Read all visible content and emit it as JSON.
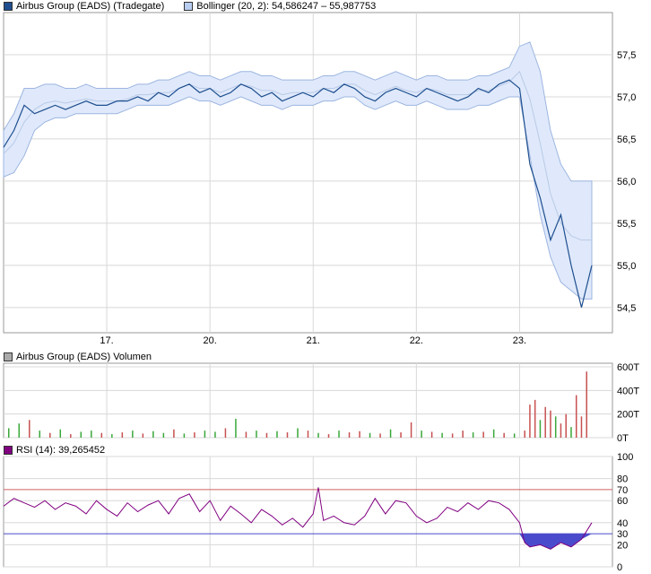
{
  "colors": {
    "price": "#1f4f8f",
    "band_fill": "#dfe9fb",
    "band_edge": "#9db5e0",
    "grid": "#d8d8d8",
    "frame": "#9a9a9a",
    "vol_up": "#3aa83a",
    "vol_down": "#c85050",
    "rsi_line": "#800080",
    "rsi_70": "#d06060",
    "rsi_30": "#4a4acc",
    "rsi_fill": "#4a4acc"
  },
  "price_panel": {
    "legend_price": "Airbus Group (EADS) (Tradegate)",
    "legend_bollinger": "Bollinger (20, 2): 54,586247 – 55,987753"
  },
  "volume_panel": {
    "legend": "Airbus Group (EADS) Volumen"
  },
  "rsi_panel": {
    "legend": "RSI (14): 39,265452"
  },
  "chart_data": [
    {
      "type": "line",
      "name": "price",
      "y_ticks": [
        "57,5",
        "57,0",
        "56,5",
        "56,0",
        "55,5",
        "55,0",
        "54,5"
      ],
      "y_tick_values": [
        57.5,
        57.0,
        56.5,
        56.0,
        55.5,
        55.0,
        54.5
      ],
      "ylim": [
        54.2,
        58.0
      ],
      "x_ticks": [
        "17.",
        "20.",
        "21.",
        "22.",
        "23."
      ],
      "x_tick_positions": [
        1,
        2,
        3,
        4,
        5
      ],
      "xlim": [
        0,
        5.9
      ],
      "x": [
        0,
        0.1,
        0.2,
        0.3,
        0.4,
        0.5,
        0.6,
        0.7,
        0.8,
        0.9,
        1.0,
        1.1,
        1.2,
        1.3,
        1.4,
        1.5,
        1.6,
        1.7,
        1.8,
        1.9,
        2.0,
        2.1,
        2.2,
        2.3,
        2.4,
        2.5,
        2.6,
        2.7,
        2.8,
        2.9,
        3.0,
        3.1,
        3.2,
        3.3,
        3.4,
        3.5,
        3.6,
        3.7,
        3.8,
        3.9,
        4.0,
        4.1,
        4.2,
        4.3,
        4.4,
        4.5,
        4.6,
        4.7,
        4.8,
        4.9,
        5.0,
        5.1,
        5.2,
        5.3,
        5.4,
        5.5,
        5.6,
        5.7
      ],
      "values": [
        56.4,
        56.6,
        56.9,
        56.8,
        56.85,
        56.9,
        56.85,
        56.9,
        56.95,
        56.9,
        56.9,
        56.95,
        56.95,
        57.0,
        56.95,
        57.05,
        57.0,
        57.1,
        57.15,
        57.05,
        57.1,
        57.0,
        57.05,
        57.15,
        57.1,
        57.0,
        57.05,
        56.95,
        57.0,
        57.05,
        57.0,
        57.1,
        57.05,
        57.15,
        57.1,
        57.0,
        56.95,
        57.05,
        57.1,
        57.05,
        57.0,
        57.1,
        57.05,
        57.0,
        56.95,
        57.0,
        57.1,
        57.05,
        57.15,
        57.2,
        57.1,
        56.2,
        55.8,
        55.3,
        55.6,
        55.0,
        54.5,
        55.0
      ],
      "band_upper": [
        56.6,
        56.8,
        57.1,
        57.1,
        57.15,
        57.15,
        57.1,
        57.1,
        57.15,
        57.1,
        57.1,
        57.1,
        57.1,
        57.15,
        57.15,
        57.2,
        57.2,
        57.25,
        57.3,
        57.25,
        57.25,
        57.2,
        57.25,
        57.3,
        57.3,
        57.25,
        57.25,
        57.2,
        57.2,
        57.2,
        57.2,
        57.25,
        57.25,
        57.3,
        57.3,
        57.25,
        57.2,
        57.25,
        57.3,
        57.25,
        57.2,
        57.25,
        57.25,
        57.2,
        57.2,
        57.2,
        57.25,
        57.25,
        57.3,
        57.35,
        57.6,
        57.65,
        57.3,
        56.6,
        56.2,
        56.0,
        56.0,
        56.0
      ],
      "band_lower": [
        56.05,
        56.1,
        56.3,
        56.6,
        56.7,
        56.75,
        56.75,
        56.8,
        56.8,
        56.8,
        56.8,
        56.8,
        56.85,
        56.9,
        56.9,
        56.9,
        56.9,
        56.95,
        57.0,
        56.95,
        56.95,
        56.9,
        56.95,
        57.0,
        56.95,
        56.9,
        56.9,
        56.85,
        56.9,
        56.9,
        56.9,
        56.95,
        56.95,
        57.0,
        57.0,
        56.9,
        56.85,
        56.9,
        56.95,
        56.9,
        56.9,
        56.95,
        56.9,
        56.85,
        56.85,
        56.85,
        56.9,
        56.9,
        56.95,
        57.0,
        57.0,
        56.3,
        55.6,
        55.1,
        54.8,
        54.7,
        54.6,
        54.6
      ]
    },
    {
      "type": "bar",
      "name": "volume",
      "y_ticks": [
        "600T",
        "400T",
        "200T",
        "0T"
      ],
      "y_tick_values": [
        600,
        400,
        200,
        0
      ],
      "ylim": [
        0,
        600
      ],
      "x": [
        0.05,
        0.15,
        0.25,
        0.35,
        0.45,
        0.55,
        0.65,
        0.75,
        0.85,
        0.95,
        1.05,
        1.15,
        1.25,
        1.35,
        1.45,
        1.55,
        1.65,
        1.75,
        1.85,
        1.95,
        2.05,
        2.15,
        2.25,
        2.35,
        2.45,
        2.55,
        2.65,
        2.75,
        2.85,
        2.95,
        3.05,
        3.15,
        3.25,
        3.35,
        3.45,
        3.55,
        3.65,
        3.75,
        3.85,
        3.95,
        4.05,
        4.15,
        4.25,
        4.35,
        4.45,
        4.55,
        4.65,
        4.75,
        4.85,
        4.95,
        5.05,
        5.1,
        5.15,
        5.2,
        5.25,
        5.3,
        5.35,
        5.4,
        5.45,
        5.5,
        5.55,
        5.6,
        5.65
      ],
      "values": [
        80,
        120,
        150,
        60,
        40,
        70,
        30,
        50,
        60,
        40,
        30,
        45,
        60,
        35,
        55,
        40,
        70,
        35,
        45,
        60,
        50,
        80,
        160,
        50,
        60,
        40,
        55,
        45,
        80,
        60,
        40,
        30,
        60,
        45,
        55,
        40,
        35,
        70,
        45,
        130,
        60,
        50,
        40,
        35,
        60,
        45,
        50,
        70,
        40,
        35,
        60,
        280,
        320,
        150,
        260,
        230,
        180,
        120,
        200,
        90,
        360,
        180,
        560
      ],
      "up": [
        true,
        true,
        false,
        true,
        false,
        true,
        false,
        true,
        true,
        false,
        true,
        false,
        true,
        false,
        true,
        true,
        false,
        true,
        false,
        true,
        true,
        false,
        true,
        false,
        true,
        false,
        true,
        false,
        true,
        false,
        true,
        false,
        true,
        false,
        false,
        true,
        false,
        true,
        false,
        false,
        true,
        false,
        true,
        false,
        false,
        true,
        false,
        true,
        false,
        true,
        false,
        false,
        false,
        true,
        false,
        false,
        true,
        false,
        false,
        true,
        false,
        false,
        false
      ]
    },
    {
      "type": "line",
      "name": "rsi",
      "y_ticks": [
        "100",
        "80",
        "70",
        "60",
        "40",
        "30",
        "20",
        "0"
      ],
      "y_tick_values": [
        100,
        80,
        70,
        60,
        40,
        30,
        20,
        0
      ],
      "ylim": [
        0,
        100
      ],
      "levels": [
        70,
        30
      ],
      "x": [
        0,
        0.1,
        0.2,
        0.3,
        0.4,
        0.5,
        0.6,
        0.7,
        0.8,
        0.9,
        1.0,
        1.1,
        1.2,
        1.3,
        1.4,
        1.5,
        1.6,
        1.7,
        1.8,
        1.9,
        2.0,
        2.1,
        2.2,
        2.3,
        2.4,
        2.5,
        2.6,
        2.7,
        2.8,
        2.9,
        3.0,
        3.05,
        3.1,
        3.2,
        3.3,
        3.4,
        3.5,
        3.6,
        3.7,
        3.8,
        3.9,
        4.0,
        4.1,
        4.2,
        4.3,
        4.4,
        4.5,
        4.6,
        4.7,
        4.8,
        4.9,
        5.0,
        5.05,
        5.1,
        5.2,
        5.3,
        5.4,
        5.5,
        5.6,
        5.7
      ],
      "values": [
        55,
        62,
        58,
        54,
        60,
        52,
        58,
        55,
        48,
        60,
        52,
        46,
        58,
        50,
        56,
        60,
        48,
        62,
        66,
        50,
        60,
        42,
        55,
        48,
        40,
        52,
        46,
        38,
        44,
        36,
        48,
        72,
        42,
        46,
        40,
        38,
        46,
        62,
        48,
        60,
        58,
        46,
        40,
        44,
        54,
        50,
        58,
        52,
        60,
        58,
        52,
        40,
        22,
        18,
        20,
        16,
        22,
        18,
        25,
        40
      ]
    }
  ]
}
